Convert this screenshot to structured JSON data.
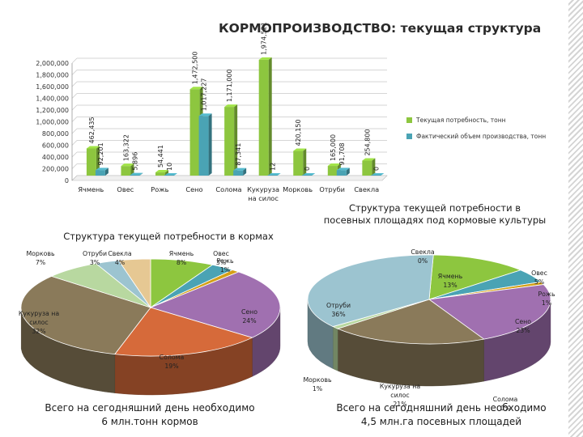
{
  "title": "КОРМОПРОИЗВОДСТВО: текущая структура",
  "colors": {
    "green": "#8dc63f",
    "teal": "#4aa3b4",
    "bg": "#ffffff"
  },
  "chart_data": [
    {
      "type": "bar",
      "categories": [
        "Ячмень",
        "Овес",
        "Рожь",
        "Сено",
        "Солома",
        "Кукуруза на силос",
        "Морковь",
        "Отруби",
        "Свекла"
      ],
      "series": [
        {
          "name": "Текущая потребность, тонн",
          "values": [
            462435,
            163322,
            54441,
            1472500,
            1171000,
            1974521,
            420150,
            165000,
            254800
          ],
          "labels": [
            "462,435",
            "163,322",
            "54,441",
            "1,472,500",
            "1,171,000",
            "1,974,521",
            "420,150",
            "165,000",
            "254,800"
          ]
        },
        {
          "name": "Фактический объем производства, тонн",
          "values": [
            92201,
            5896,
            10,
            1017227,
            87341,
            12,
            0,
            91708,
            0
          ],
          "labels": [
            "92,201",
            "5,896",
            "10",
            "1,017,227",
            "87,341",
            "12",
            "0",
            "91,708",
            "0"
          ]
        }
      ],
      "yticks": [
        "0",
        "200,000",
        "400,000",
        "600,000",
        "800,000",
        "1,000,000",
        "1,200,000",
        "1,400,000",
        "1,600,000",
        "1,800,000",
        "2,000,000"
      ],
      "ylim": [
        0,
        2000000
      ],
      "legend_position": "right"
    },
    {
      "type": "pie",
      "title": "Структура текущей потребности в кормах",
      "slices": [
        {
          "label": "Ячмень",
          "value": 8,
          "pct": "8%",
          "color": "#8dc63f"
        },
        {
          "label": "Овес",
          "value": 3,
          "pct": "3%",
          "color": "#4aa3b4"
        },
        {
          "label": "Рожь",
          "value": 1,
          "pct": "1%",
          "color": "#d4a017"
        },
        {
          "label": "Сено",
          "value": 24,
          "pct": "24%",
          "color": "#a070b0"
        },
        {
          "label": "Солома",
          "value": 19,
          "pct": "19%",
          "color": "#d66a3a"
        },
        {
          "label": "Кукуруза на силос",
          "value": 32,
          "pct": "32%",
          "color": "#8a7a5a"
        },
        {
          "label": "Морковь",
          "value": 7,
          "pct": "7%",
          "color": "#b8d8a0"
        },
        {
          "label": "Отруби",
          "value": 3,
          "pct": "3%",
          "color": "#9cc4d0"
        },
        {
          "label": "Свекла",
          "value": 4,
          "pct": "4%",
          "color": "#e6c893"
        }
      ],
      "note_lines": [
        "Всего на сегодняшний день необходимо",
        "6 млн.тонн кормов"
      ]
    },
    {
      "type": "pie",
      "title_lines": [
        "Структура текущей потребности в",
        "посевных площадях под кормовые культуры"
      ],
      "slices": [
        {
          "label": "Ячмень",
          "value": 13,
          "pct": "13%",
          "color": "#8dc63f"
        },
        {
          "label": "Овес",
          "value": 5,
          "pct": "5%",
          "color": "#4aa3b4"
        },
        {
          "label": "Рожь",
          "value": 1,
          "pct": "1%",
          "color": "#d4a017"
        },
        {
          "label": "Сено",
          "value": 23,
          "pct": "23%",
          "color": "#a070b0"
        },
        {
          "label": "Солома",
          "value": 0,
          "pct": "0%",
          "color": "#d66a3a"
        },
        {
          "label": "Кукуруза на силос",
          "value": 21,
          "pct": "21%",
          "color": "#8a7a5a"
        },
        {
          "label": "Морковь",
          "value": 1,
          "pct": "1%",
          "color": "#b8d8a0"
        },
        {
          "label": "Отруби",
          "value": 36,
          "pct": "36%",
          "color": "#9cc4d0"
        },
        {
          "label": "Свекла",
          "value": 0,
          "pct": "0%",
          "color": "#e6c893"
        }
      ],
      "note_lines": [
        "Всего на сегодняшний день необходимо",
        "4,5 млн.га посевных площадей"
      ]
    }
  ]
}
